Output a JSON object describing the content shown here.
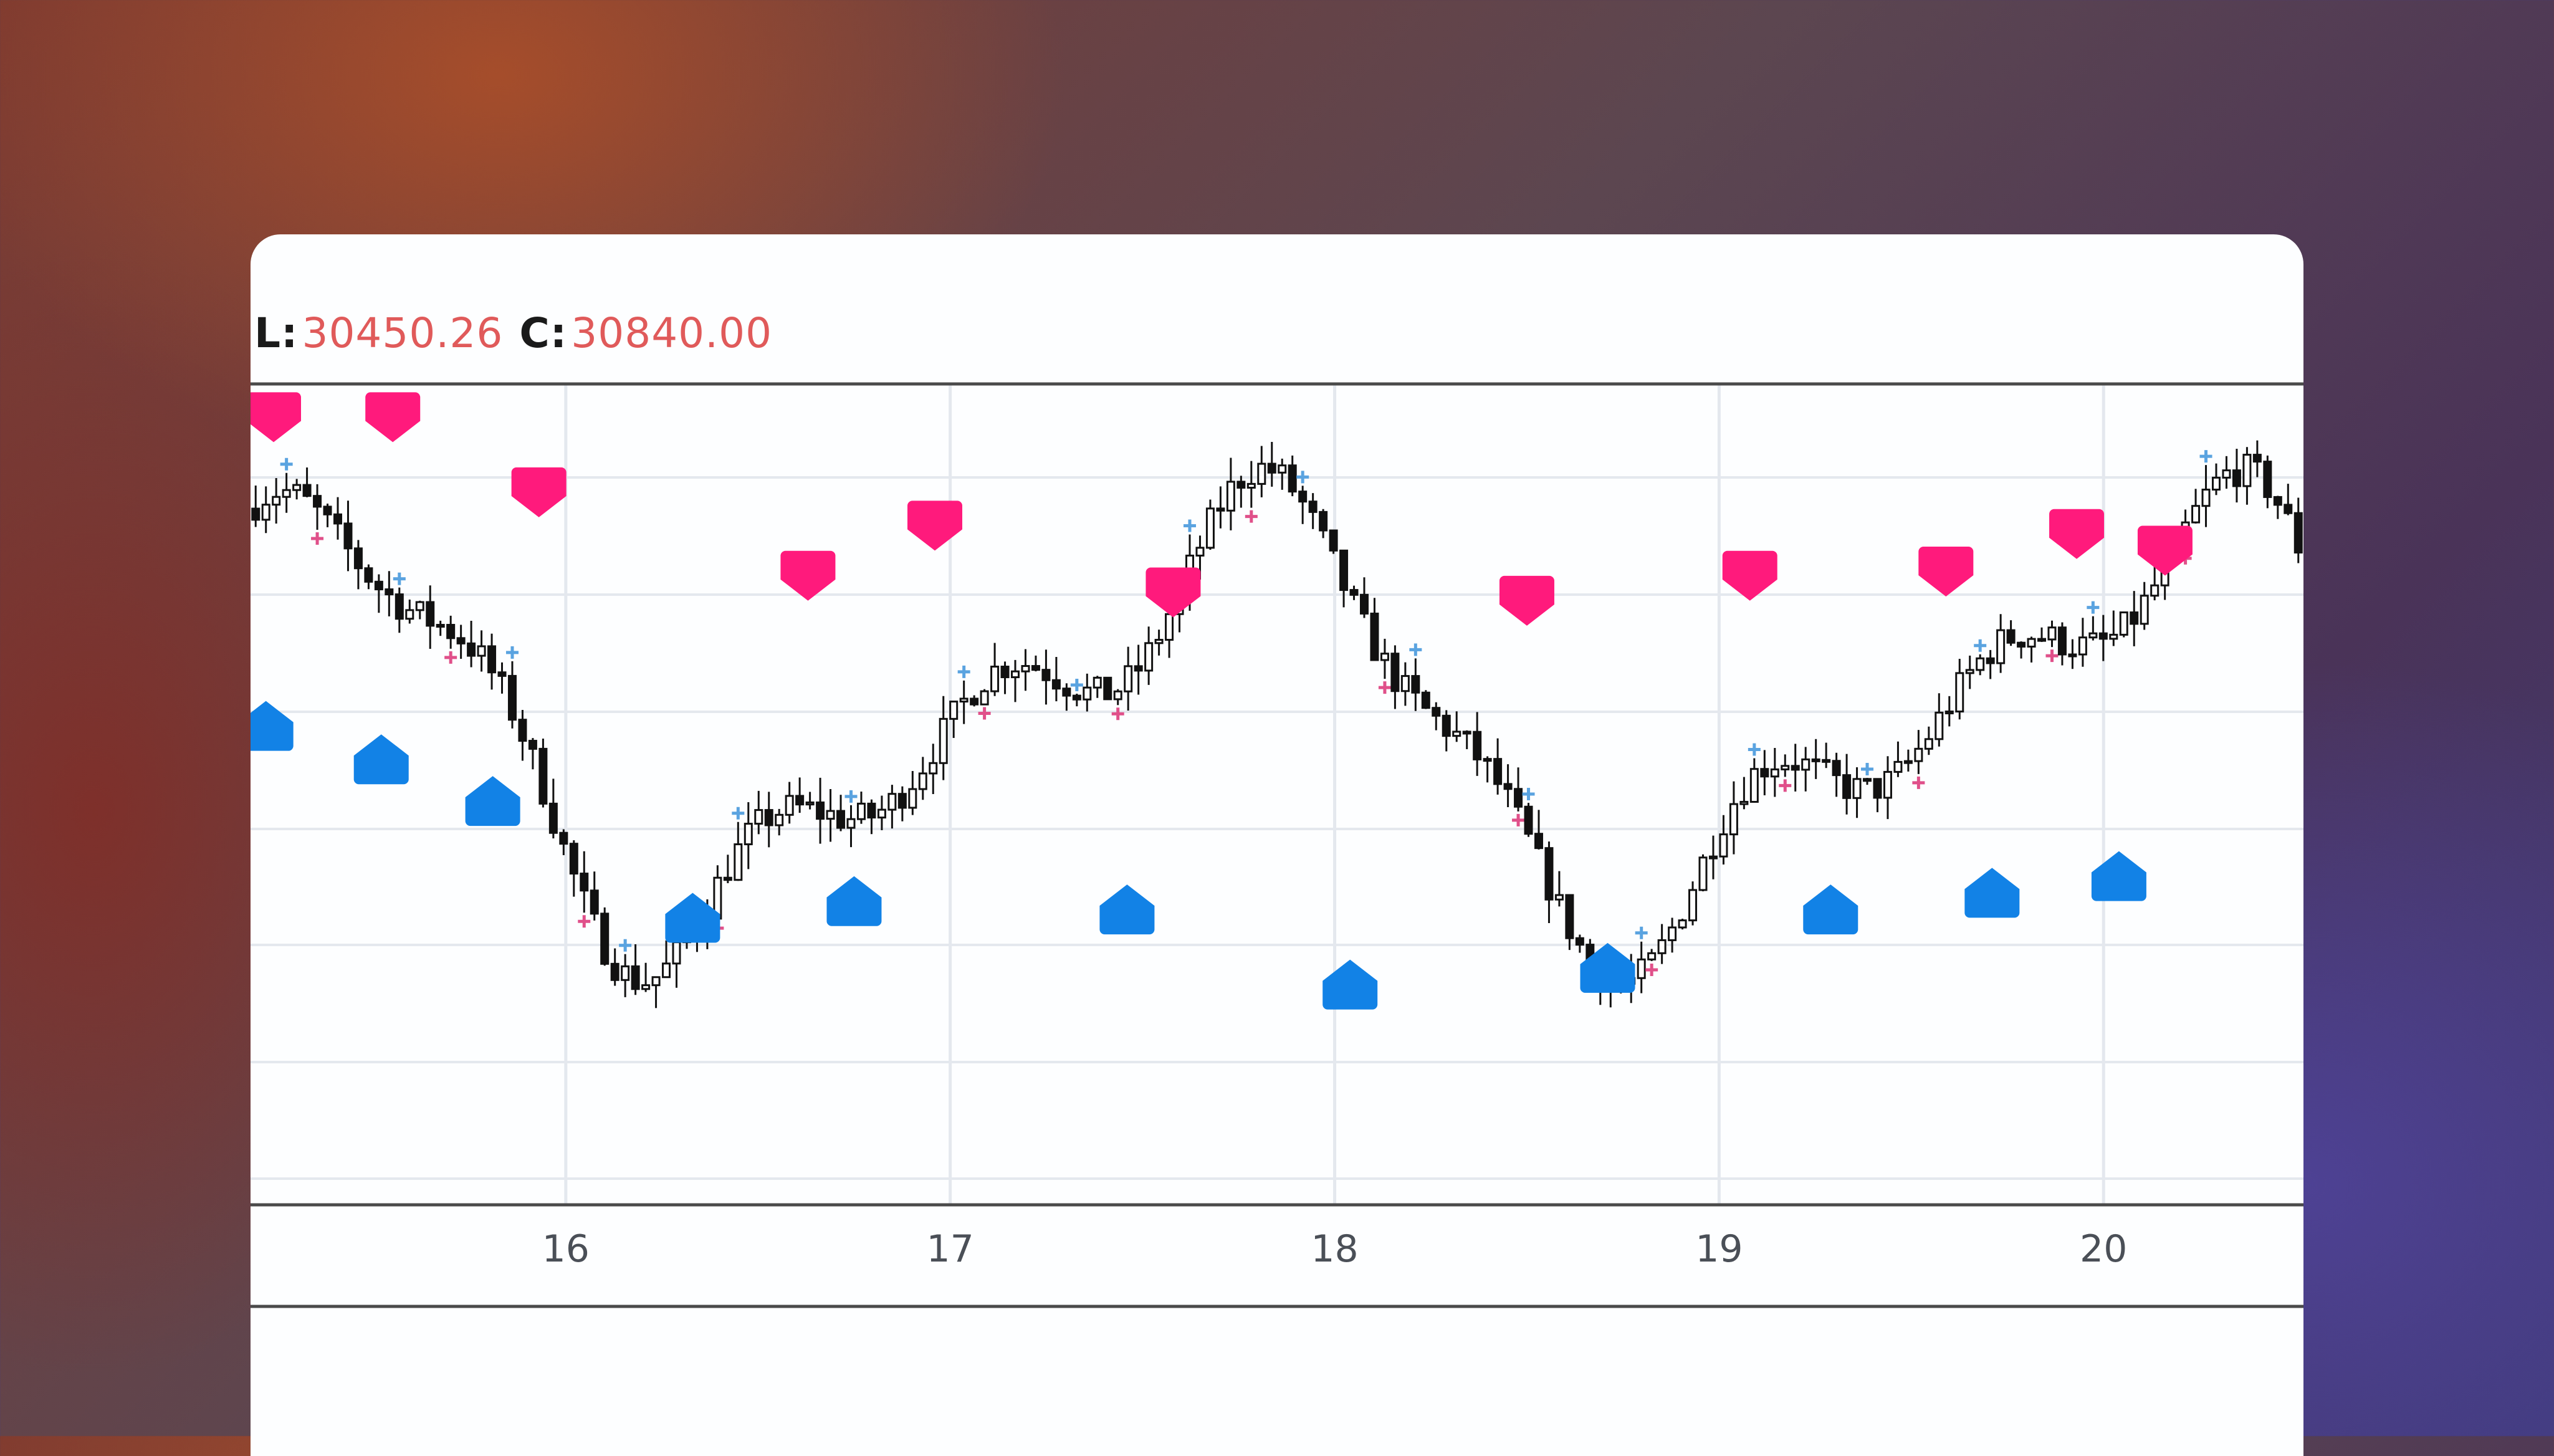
{
  "ohlc_legend": {
    "low_label": "L:",
    "low_value": "30450.26",
    "close_label": "C:",
    "close_value": "30840.00"
  },
  "colors": {
    "down_signal": "#ff1a7c",
    "up_signal": "#1282e6",
    "plus_up": "#5aa3e0",
    "plus_down": "#e0508a",
    "candle": "#111111",
    "grid": "#e4e8ee",
    "axis_line": "#4a4a4a",
    "value_text": "#e05a5a"
  },
  "chart_data": {
    "type": "candlestick",
    "x_axis_ticks": [
      "16",
      "17",
      "18",
      "19",
      "20"
    ],
    "x_range": [
      15.18,
      20.52
    ],
    "y_scale_note": "price axis not shown; values read relative to visible L/C",
    "y_range": [
      30300,
      31000
    ],
    "sell_signal_markers_x": [
      15.24,
      15.55,
      15.93,
      16.63,
      16.96,
      17.58,
      18.5,
      19.08,
      19.59,
      19.93,
      20.16
    ],
    "sell_signal_markers_y": [
      30990,
      30990,
      30900,
      30800,
      30860,
      30780,
      30770,
      30800,
      30805,
      30850,
      30830
    ],
    "buy_signal_markers_x": [
      15.22,
      15.52,
      15.81,
      16.33,
      16.75,
      17.46,
      18.04,
      18.71,
      19.29,
      19.71,
      20.04
    ],
    "buy_signal_markers_y": [
      30620,
      30580,
      30530,
      30390,
      30410,
      30400,
      30310,
      30330,
      30400,
      30420,
      30440
    ]
  }
}
